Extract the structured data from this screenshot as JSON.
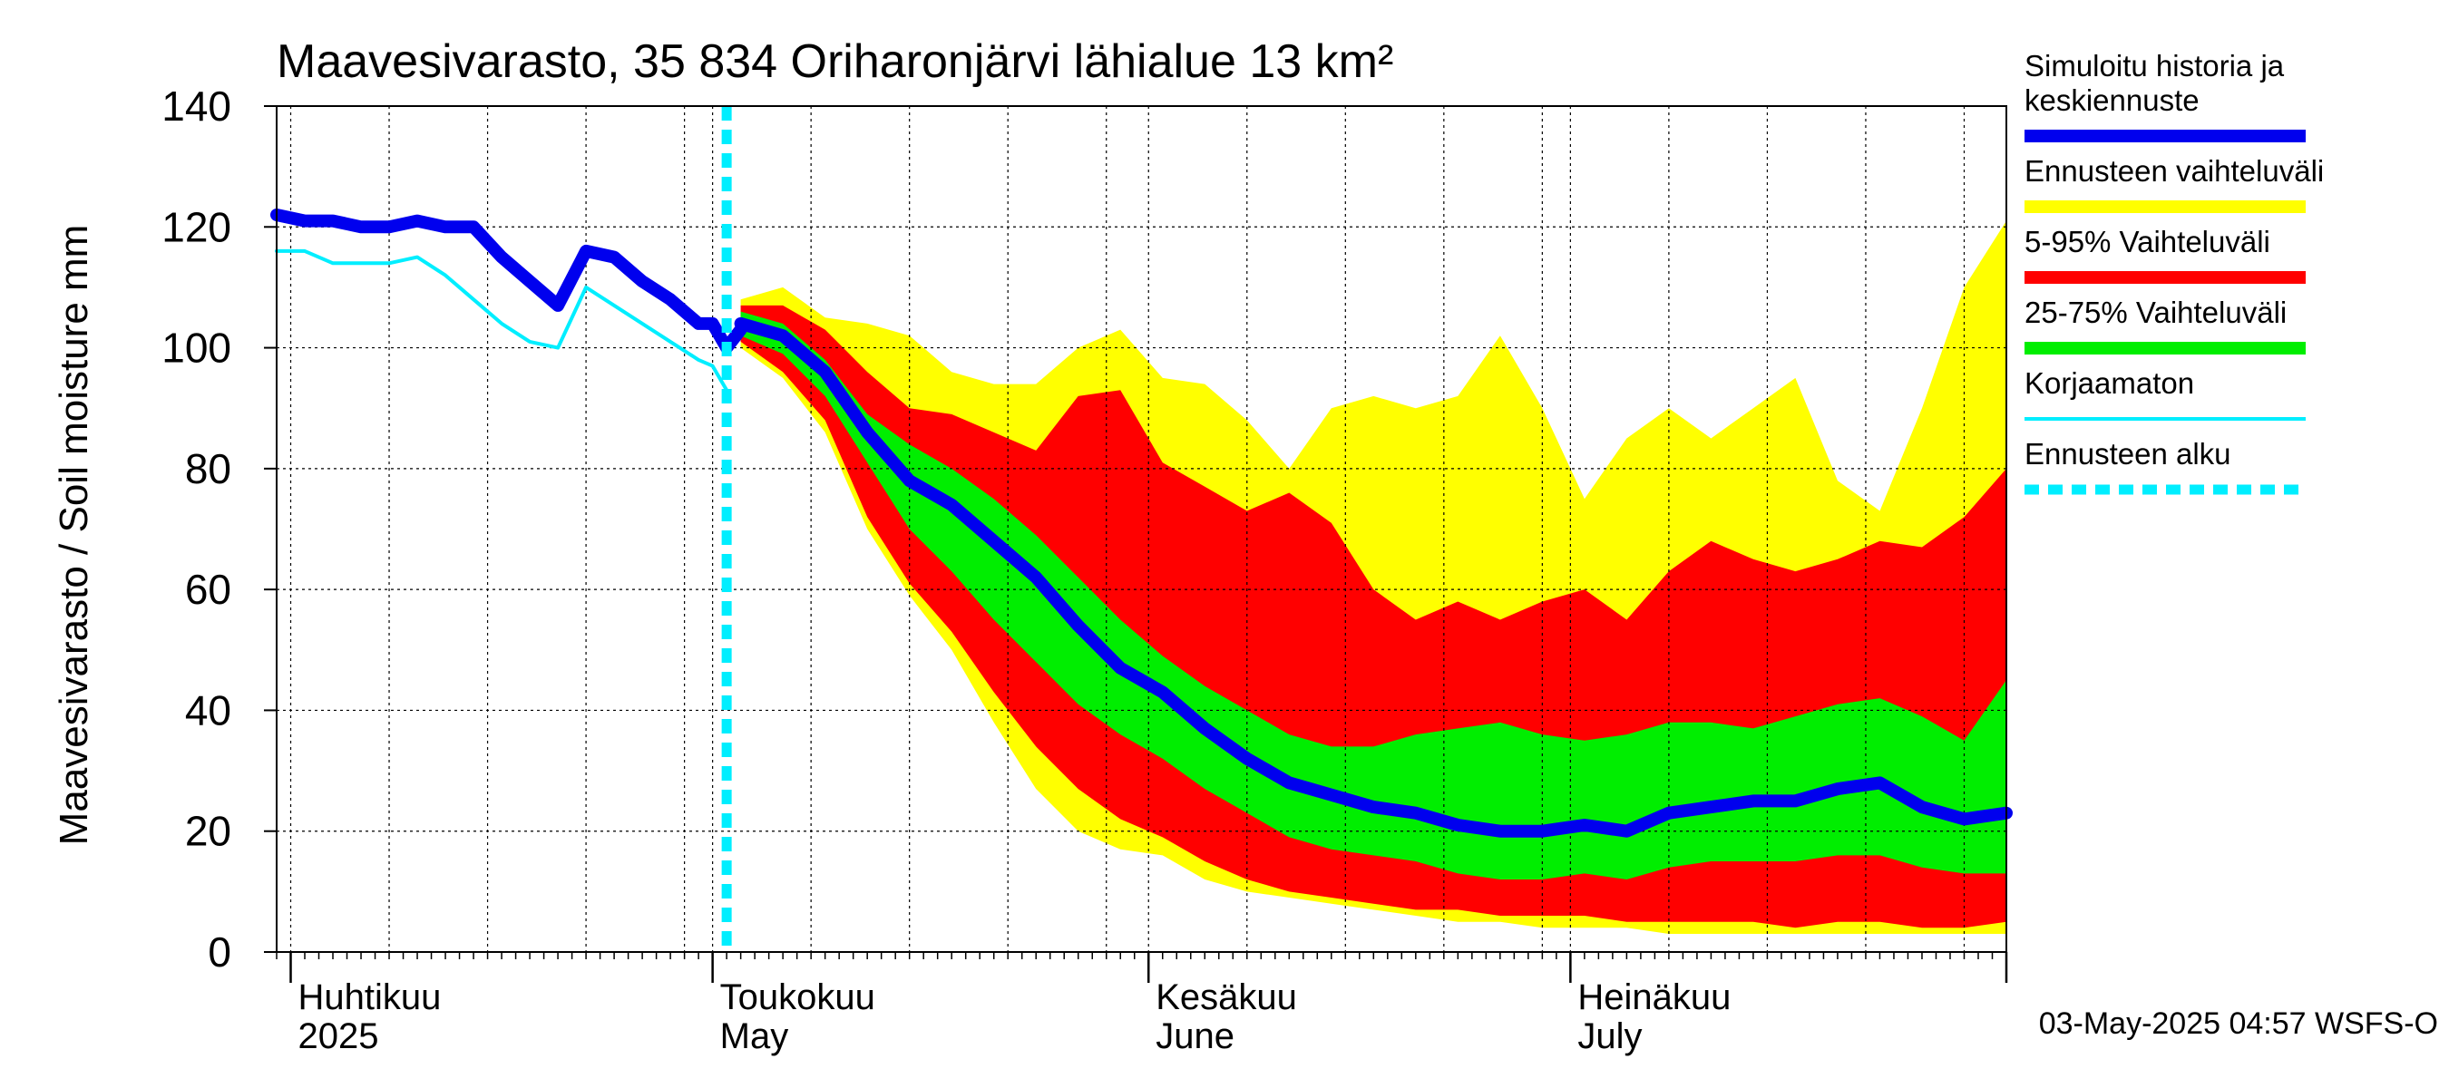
{
  "chart_data": {
    "type": "area",
    "title": "Maavesivarasto, 35 834 Oriharonjärvi lähialue 13 km²",
    "ylabel": "Maavesivarasto / Soil moisture   mm",
    "xlabel": "",
    "ylim": [
      0,
      140
    ],
    "yticks": [
      0,
      20,
      40,
      60,
      80,
      100,
      120,
      140
    ],
    "xlim": [
      "2025-03-31",
      "2025-08-01"
    ],
    "grid": true,
    "legend_placement": "right",
    "forecast_start": "2025-05-02",
    "month_labels": [
      {
        "date": "2025-04-01",
        "fi": "Huhtikuu",
        "en": "2025"
      },
      {
        "date": "2025-05-01",
        "fi": "Toukokuu",
        "en": "May"
      },
      {
        "date": "2025-06-01",
        "fi": "Kesäkuu",
        "en": "June"
      },
      {
        "date": "2025-07-01",
        "fi": "Heinäkuu",
        "en": "July"
      }
    ],
    "month_boundaries": [
      "2025-04-01",
      "2025-05-01",
      "2025-06-01",
      "2025-07-01",
      "2025-08-01"
    ],
    "legend": [
      {
        "label": "Simuloitu historia ja keskiennuste",
        "color": "#0000ee",
        "style": "thick"
      },
      {
        "label": "Ennusteen vaihteluväli",
        "color": "#ffff00",
        "style": "thick"
      },
      {
        "label": "5-95% Vaihteluväli",
        "color": "#ff0000",
        "style": "thick"
      },
      {
        "label": "25-75% Vaihteluväli",
        "color": "#00ee00",
        "style": "thick"
      },
      {
        "label": "Korjaamaton",
        "color": "#00eeff",
        "style": "thin"
      },
      {
        "label": "Ennusteen alku",
        "color": "#00eeff",
        "style": "dashed"
      }
    ],
    "footer": "03-May-2025 04:57 WSFS-O",
    "series": {
      "history": [
        [
          "2025-03-31",
          122
        ],
        [
          "2025-04-02",
          121
        ],
        [
          "2025-04-04",
          121
        ],
        [
          "2025-04-06",
          120
        ],
        [
          "2025-04-08",
          120
        ],
        [
          "2025-04-10",
          121
        ],
        [
          "2025-04-12",
          120
        ],
        [
          "2025-04-14",
          120
        ],
        [
          "2025-04-16",
          115
        ],
        [
          "2025-04-18",
          111
        ],
        [
          "2025-04-20",
          107
        ],
        [
          "2025-04-22",
          116
        ],
        [
          "2025-04-24",
          115
        ],
        [
          "2025-04-26",
          111
        ],
        [
          "2025-04-28",
          108
        ],
        [
          "2025-04-30",
          104
        ],
        [
          "2025-05-01",
          104
        ],
        [
          "2025-05-02",
          100
        ],
        [
          "2025-05-03",
          103
        ]
      ],
      "uncorrected": [
        [
          "2025-03-31",
          116
        ],
        [
          "2025-04-02",
          116
        ],
        [
          "2025-04-04",
          114
        ],
        [
          "2025-04-06",
          114
        ],
        [
          "2025-04-08",
          114
        ],
        [
          "2025-04-10",
          115
        ],
        [
          "2025-04-12",
          112
        ],
        [
          "2025-04-14",
          108
        ],
        [
          "2025-04-16",
          104
        ],
        [
          "2025-04-18",
          101
        ],
        [
          "2025-04-20",
          100
        ],
        [
          "2025-04-22",
          110
        ],
        [
          "2025-04-24",
          107
        ],
        [
          "2025-04-26",
          104
        ],
        [
          "2025-04-28",
          101
        ],
        [
          "2025-04-30",
          98
        ],
        [
          "2025-05-01",
          97
        ],
        [
          "2025-05-02",
          93
        ]
      ],
      "forecast_dates": [
        "2025-05-03",
        "2025-05-06",
        "2025-05-09",
        "2025-05-12",
        "2025-05-15",
        "2025-05-18",
        "2025-05-21",
        "2025-05-24",
        "2025-05-27",
        "2025-05-30",
        "2025-06-02",
        "2025-06-05",
        "2025-06-08",
        "2025-06-11",
        "2025-06-14",
        "2025-06-17",
        "2025-06-20",
        "2025-06-23",
        "2025-06-26",
        "2025-06-29",
        "2025-07-02",
        "2025-07-05",
        "2025-07-08",
        "2025-07-11",
        "2025-07-14",
        "2025-07-17",
        "2025-07-20",
        "2025-07-23",
        "2025-07-26",
        "2025-07-29",
        "2025-08-01"
      ],
      "median": [
        104,
        102,
        96,
        86,
        78,
        74,
        68,
        62,
        54,
        47,
        43,
        37,
        32,
        28,
        26,
        24,
        23,
        21,
        20,
        20,
        21,
        20,
        23,
        24,
        25,
        25,
        27,
        28,
        24,
        22,
        23
      ],
      "p25": [
        102,
        99,
        92,
        81,
        70,
        63,
        55,
        48,
        41,
        36,
        32,
        27,
        23,
        19,
        17,
        16,
        15,
        13,
        12,
        12,
        13,
        12,
        14,
        15,
        15,
        15,
        16,
        16,
        14,
        13,
        13
      ],
      "p75": [
        106,
        104,
        98,
        89,
        84,
        80,
        75,
        69,
        62,
        55,
        49,
        44,
        40,
        36,
        34,
        34,
        36,
        37,
        38,
        36,
        35,
        36,
        38,
        38,
        37,
        39,
        41,
        42,
        39,
        35,
        45
      ],
      "p5": [
        101,
        96,
        88,
        72,
        61,
        53,
        43,
        34,
        27,
        22,
        19,
        15,
        12,
        10,
        9,
        8,
        7,
        7,
        6,
        6,
        6,
        5,
        5,
        5,
        5,
        4,
        5,
        5,
        4,
        4,
        5
      ],
      "p95": [
        107,
        107,
        103,
        96,
        90,
        89,
        86,
        83,
        92,
        93,
        81,
        77,
        73,
        76,
        71,
        60,
        55,
        58,
        55,
        58,
        60,
        55,
        63,
        68,
        65,
        63,
        65,
        68,
        67,
        72,
        80
      ],
      "min": [
        100,
        95,
        86,
        70,
        59,
        50,
        38,
        27,
        20,
        17,
        16,
        12,
        10,
        9,
        8,
        7,
        6,
        5,
        5,
        4,
        4,
        4,
        3,
        3,
        3,
        3,
        3,
        3,
        3,
        3,
        3
      ],
      "max": [
        108,
        110,
        105,
        104,
        102,
        96,
        94,
        94,
        100,
        103,
        95,
        94,
        88,
        80,
        90,
        92,
        90,
        92,
        102,
        90,
        75,
        85,
        90,
        85,
        90,
        95,
        78,
        73,
        90,
        110,
        121
      ]
    }
  }
}
